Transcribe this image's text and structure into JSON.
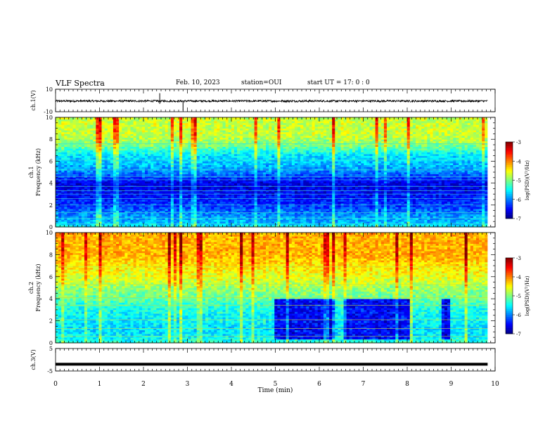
{
  "header": {
    "title": "VLF Spectra",
    "date": "Feb. 10, 2023",
    "station": "station=OUI",
    "start": "start  UT =   17: 0  : 0"
  },
  "colors": {
    "spectrum_low": "#00008b",
    "spectrum_mid": "#00ff00",
    "spectrum_high": "#ff0000",
    "trace": "#000000"
  },
  "chart_data": [
    {
      "type": "line",
      "panel": "waveform-ch1",
      "ylabel": "ch.1(V)",
      "ylim": [
        -10,
        10
      ],
      "yticks": [
        "10",
        "-10"
      ],
      "xlim": [
        0,
        10
      ],
      "series": [
        {
          "values_approx": "noise band between about -1.5 and 0.5 V with spikes near 2.4 and 2.9 min"
        }
      ]
    },
    {
      "type": "heatmap",
      "panel": "spectrogram-ch1",
      "ylabel": "ch.1\nFrequency (kHz)",
      "ylabel_line1": "ch.1",
      "ylabel_line2": "Frequency (kHz)",
      "xlim": [
        0,
        10
      ],
      "ylim": [
        0,
        10
      ],
      "yticks": [
        "0",
        "2",
        "4",
        "6",
        "8",
        "10"
      ],
      "data_extent_min": 9.83,
      "colorbar": {
        "label": "log(PSD)(V²/Hz)",
        "range": [
          -7,
          -3
        ],
        "ticks": [
          "-3",
          "-4",
          "-5",
          "-6",
          "-7"
        ]
      },
      "profile_freq_khz": [
        0,
        0.5,
        1,
        1.5,
        2,
        2.5,
        3,
        3.5,
        4,
        4.5,
        5,
        5.5,
        6,
        6.5,
        7,
        7.5,
        8,
        8.5,
        9,
        9.5,
        10
      ],
      "profile_log_psd": [
        -5.5,
        -5.8,
        -5.9,
        -6.1,
        -6.3,
        -6.4,
        -6.5,
        -6.6,
        -6.6,
        -6.3,
        -6.0,
        -5.8,
        -5.7,
        -5.6,
        -5.3,
        -5.0,
        -4.8,
        -4.7,
        -4.7,
        -4.7,
        -4.7
      ]
    },
    {
      "type": "heatmap",
      "panel": "spectrogram-ch2",
      "ylabel": "ch.2\nFrequency (kHz)",
      "ylabel_line1": "ch.2",
      "ylabel_line2": "Frequency (kHz)",
      "xlim": [
        0,
        10
      ],
      "ylim": [
        0,
        10
      ],
      "yticks": [
        "0",
        "2",
        "4",
        "6",
        "8",
        "10"
      ],
      "data_extent_min": 9.83,
      "colorbar": {
        "label": "log(PSD)(V²/Hz)",
        "range": [
          -7,
          -3
        ],
        "ticks": [
          "-3",
          "-4",
          "-5",
          "-6",
          "-7"
        ]
      },
      "profile_freq_khz": [
        0,
        0.5,
        1,
        1.5,
        2,
        2.5,
        3,
        3.5,
        4,
        4.5,
        5,
        5.5,
        6,
        6.5,
        7,
        7.5,
        8,
        8.5,
        9,
        9.5,
        10
      ],
      "profile_log_psd": [
        -5.3,
        -5.5,
        -5.6,
        -5.6,
        -5.5,
        -5.5,
        -5.4,
        -5.3,
        -5.1,
        -5.0,
        -4.9,
        -4.7,
        -4.6,
        -4.5,
        -4.4,
        -4.3,
        -4.2,
        -4.2,
        -4.2,
        -4.2,
        -4.2
      ],
      "quiet_region": {
        "x_min": [
          5.0,
          9.0
        ],
        "freq_khz": [
          0.3,
          4.0
        ],
        "log_psd": -6.5
      }
    },
    {
      "type": "line",
      "panel": "waveform-ch3",
      "ylabel": "ch.3(V)",
      "ylim": [
        -5,
        5
      ],
      "yticks": [
        "5",
        "-5"
      ],
      "xlim": [
        0,
        10
      ],
      "xlabel": "Time (min)",
      "xticks": [
        "0",
        "1",
        "2",
        "3",
        "4",
        "5",
        "6",
        "7",
        "8",
        "9",
        "10"
      ],
      "series": [
        {
          "values": "flat line at about -2 V"
        }
      ]
    }
  ]
}
